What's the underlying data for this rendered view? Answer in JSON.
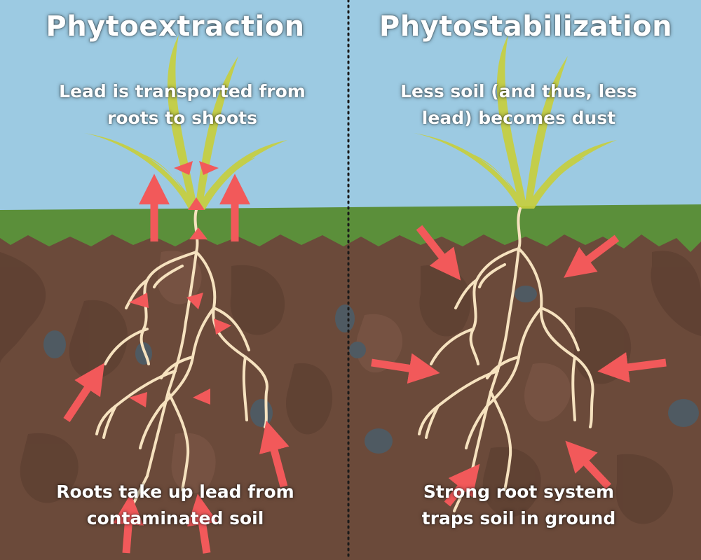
{
  "colors": {
    "sky": "#9ccae2",
    "grass": "#5b8f3a",
    "soil": "#6b4a3a",
    "root": "#f6e2bf",
    "arrow": "#f2595a",
    "plant": "#c7cf3f"
  },
  "panels": {
    "left": {
      "title": "Phytoextraction",
      "top_caption": [
        "Lead is transported from",
        "roots to shoots"
      ],
      "bottom_caption": [
        "Roots take up lead from",
        "contaminated soil"
      ]
    },
    "right": {
      "title": "Phytostabilization",
      "top_caption": [
        "Less soil (and thus, less",
        "lead) becomes dust"
      ],
      "bottom_caption": [
        "Strong root system",
        "traps soil in ground"
      ]
    }
  }
}
